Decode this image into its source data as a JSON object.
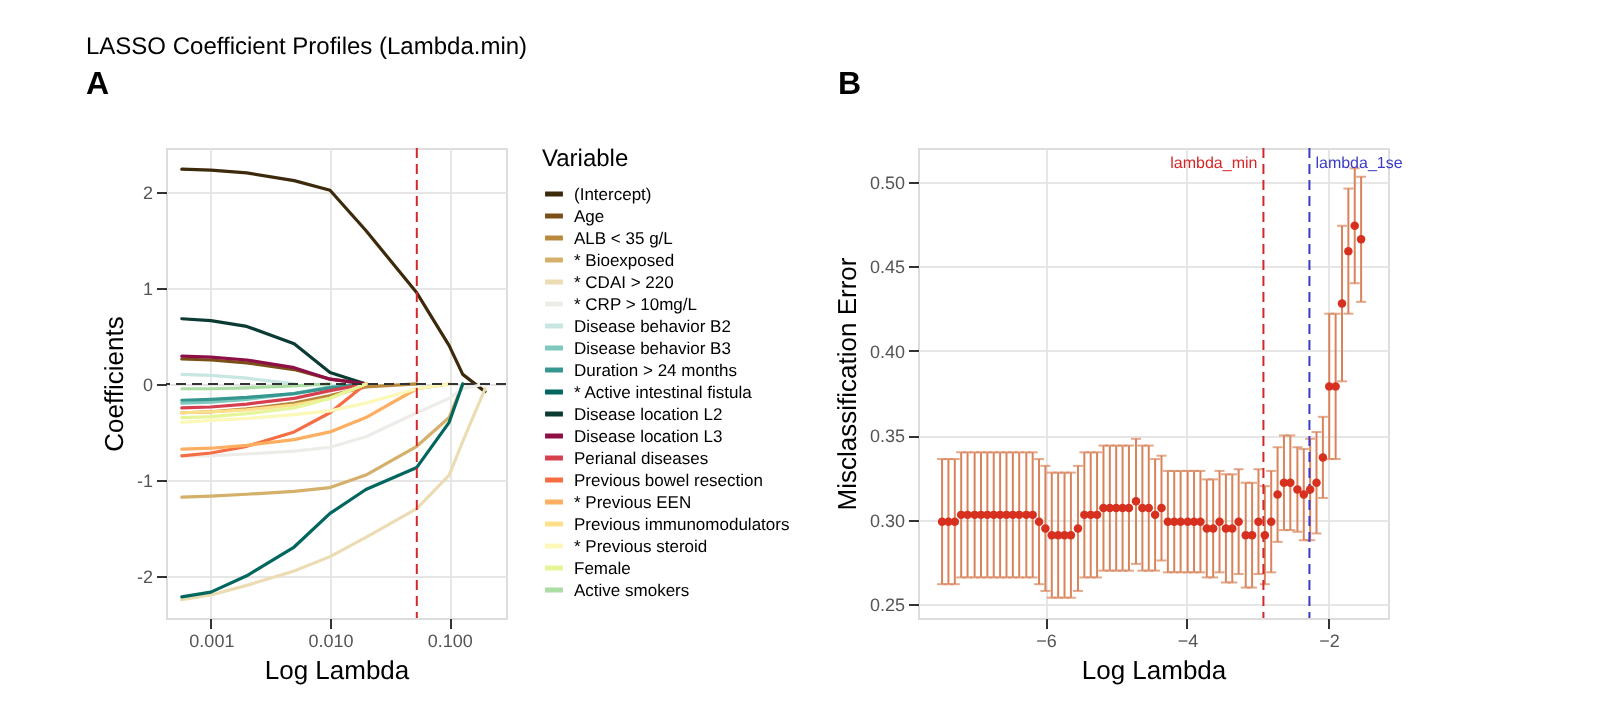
{
  "chart_data": [
    {
      "type": "line",
      "title": "LASSO Coefficient Profiles (Lambda.min)",
      "xlabel": "Log Lambda",
      "ylabel": "Coefficients",
      "legend_title": "Variable",
      "annotations": [
        "A"
      ],
      "x": [
        0.00057,
        0.001,
        0.002,
        0.005,
        0.01,
        0.02,
        0.0535,
        0.1,
        0.13,
        0.2
      ],
      "series": [
        {
          "name": "(Intercept)",
          "color": "#3d2a0c",
          "values": [
            2.24,
            2.23,
            2.2,
            2.12,
            2.02,
            1.6,
            0.95,
            0.4,
            0.1,
            -0.08
          ]
        },
        {
          "name": "Age",
          "color": "#7a5018",
          "values": [
            0.26,
            0.25,
            0.22,
            0.15,
            0.05,
            0,
            null,
            null,
            null,
            null
          ]
        },
        {
          "name": "ALB < 35 g/L",
          "color": "#b8893c",
          "values": [
            -0.3,
            -0.29,
            -0.26,
            -0.2,
            -0.12,
            -0.03,
            0,
            null,
            null,
            null
          ]
        },
        {
          "name": "* Bioexposed",
          "color": "#d4b06a",
          "values": [
            -1.18,
            -1.17,
            -1.15,
            -1.12,
            -1.08,
            -0.95,
            -0.65,
            -0.35,
            0,
            null
          ]
        },
        {
          "name": "* CDAI > 220",
          "color": "#ecdcb4",
          "values": [
            -2.25,
            -2.2,
            -2.1,
            -1.95,
            -1.8,
            -1.6,
            -1.3,
            -0.95,
            -0.6,
            -0.05
          ]
        },
        {
          "name": "* CRP > 10mg/L",
          "color": "#eeece8",
          "values": [
            -0.75,
            -0.75,
            -0.73,
            -0.7,
            -0.66,
            -0.55,
            -0.3,
            -0.15,
            -0.05,
            0
          ]
        },
        {
          "name": "Disease behavior B2",
          "color": "#c8e6e2",
          "values": [
            0.1,
            0.09,
            0.06,
            0,
            null,
            null,
            null,
            null,
            null,
            null
          ]
        },
        {
          "name": "Disease behavior B3",
          "color": "#7fc8bd",
          "values": [
            -0.2,
            -0.19,
            -0.16,
            -0.1,
            -0.03,
            0,
            null,
            null,
            null,
            null
          ]
        },
        {
          "name": "Duration > 24 months",
          "color": "#35978f",
          "values": [
            -0.17,
            -0.16,
            -0.14,
            -0.1,
            -0.04,
            0,
            null,
            null,
            null,
            null
          ]
        },
        {
          "name": "* Active intestinal fistula",
          "color": "#01665e",
          "values": [
            -2.22,
            -2.17,
            -2.0,
            -1.7,
            -1.35,
            -1.1,
            -0.87,
            -0.4,
            0,
            null
          ]
        },
        {
          "name": "Disease location L2",
          "color": "#0b3b33",
          "values": [
            0.68,
            0.66,
            0.6,
            0.42,
            0.12,
            0,
            null,
            null,
            null,
            null
          ]
        },
        {
          "name": "Disease location L3",
          "color": "#8e0f45",
          "values": [
            0.29,
            0.28,
            0.25,
            0.17,
            0.05,
            0,
            null,
            null,
            null,
            null
          ]
        },
        {
          "name": "Perianal diseases",
          "color": "#d6404e",
          "values": [
            -0.25,
            -0.24,
            -0.21,
            -0.15,
            -0.07,
            0,
            null,
            null,
            null,
            null
          ]
        },
        {
          "name": "Previous bowel resection",
          "color": "#f46d43",
          "values": [
            -0.75,
            -0.72,
            -0.65,
            -0.5,
            -0.3,
            0,
            null,
            null,
            null,
            null
          ]
        },
        {
          "name": "* Previous EEN",
          "color": "#fdae61",
          "values": [
            -0.68,
            -0.67,
            -0.64,
            -0.58,
            -0.5,
            -0.35,
            -0.05,
            0,
            null,
            null
          ]
        },
        {
          "name": "Previous immunomodulators",
          "color": "#fee08b",
          "values": [
            -0.3,
            -0.29,
            -0.27,
            -0.22,
            -0.15,
            0,
            null,
            null,
            null,
            null
          ]
        },
        {
          "name": "* Previous steroid",
          "color": "#fbf8b8",
          "values": [
            -0.4,
            -0.38,
            -0.36,
            -0.32,
            -0.28,
            -0.2,
            -0.05,
            0,
            null,
            null
          ]
        },
        {
          "name": "Female",
          "color": "#e6f598",
          "values": [
            -0.35,
            -0.34,
            -0.31,
            -0.25,
            -0.15,
            0,
            null,
            null,
            null,
            null
          ]
        },
        {
          "name": "Active smokers",
          "color": "#abdda4",
          "values": [
            -0.05,
            -0.05,
            -0.04,
            -0.02,
            0,
            null,
            null,
            null,
            null,
            null
          ]
        }
      ],
      "log": "x",
      "xlim": [
        0.00042,
        0.3
      ],
      "xticks": [
        {
          "value": 0.001,
          "label": "0.001"
        },
        {
          "value": 0.01,
          "label": "0.010"
        },
        {
          "value": 0.1,
          "label": "0.100"
        }
      ],
      "ylim": [
        -2.44,
        2.46
      ],
      "yticks": [
        {
          "value": -2,
          "label": "-2"
        },
        {
          "value": -1,
          "label": "-1"
        },
        {
          "value": 0,
          "label": "0"
        },
        {
          "value": 1,
          "label": "1"
        },
        {
          "value": 2,
          "label": "2"
        }
      ],
      "grid": true,
      "legend": "right",
      "line_style": "solid",
      "ref_lines": [
        {
          "axis": "x",
          "value": 0.0535,
          "color": "#d62728",
          "line_style": "dashed"
        },
        {
          "axis": "y",
          "value": 0,
          "color": "#333333",
          "line_style": "dashed"
        }
      ]
    },
    {
      "type": "scatter",
      "xlabel": "Log Lambda",
      "ylabel": "Misclassification Error",
      "annotations": [
        "B"
      ],
      "marker": "circle",
      "grid": true,
      "x": [
        -7.46,
        -7.37,
        -7.28,
        -7.19,
        -7.1,
        -7.0,
        -6.91,
        -6.82,
        -6.73,
        -6.64,
        -6.55,
        -6.46,
        -6.37,
        -6.27,
        -6.18,
        -6.09,
        -6.0,
        -5.91,
        -5.82,
        -5.73,
        -5.64,
        -5.54,
        -5.45,
        -5.36,
        -5.27,
        -5.18,
        -5.09,
        -5.0,
        -4.91,
        -4.82,
        -4.72,
        -4.63,
        -4.54,
        -4.45,
        -4.36,
        -4.27,
        -4.18,
        -4.09,
        -3.99,
        -3.9,
        -3.81,
        -3.72,
        -3.63,
        -3.54,
        -3.45,
        -3.36,
        -3.27,
        -3.17,
        -3.08,
        -2.99,
        -2.9,
        -2.81,
        -2.72,
        -2.63,
        -2.54,
        -2.44,
        -2.35,
        -2.26,
        -2.17,
        -2.08,
        -1.99,
        -1.9,
        -1.81,
        -1.72,
        -1.63,
        -1.54
      ],
      "series": [
        {
          "color": "#d7301f",
          "values": [
            0.299,
            0.299,
            0.299,
            0.303,
            0.303,
            0.303,
            0.303,
            0.303,
            0.303,
            0.303,
            0.303,
            0.303,
            0.303,
            0.303,
            0.303,
            0.299,
            0.295,
            0.291,
            0.291,
            0.291,
            0.291,
            0.295,
            0.303,
            0.303,
            0.303,
            0.307,
            0.307,
            0.307,
            0.307,
            0.307,
            0.311,
            0.307,
            0.307,
            0.303,
            0.307,
            0.299,
            0.299,
            0.299,
            0.299,
            0.299,
            0.299,
            0.295,
            0.295,
            0.299,
            0.295,
            0.295,
            0.299,
            0.291,
            0.291,
            0.299,
            0.291,
            0.299,
            0.315,
            0.322,
            0.322,
            0.318,
            0.315,
            0.318,
            0.322,
            0.337,
            0.379,
            0.379,
            0.428,
            0.459,
            0.474,
            0.466
          ],
          "errors": [
            0.037,
            0.037,
            0.037,
            0.037,
            0.037,
            0.037,
            0.037,
            0.037,
            0.037,
            0.037,
            0.037,
            0.037,
            0.037,
            0.037,
            0.037,
            0.037,
            0.037,
            0.037,
            0.037,
            0.037,
            0.037,
            0.037,
            0.037,
            0.037,
            0.037,
            0.037,
            0.037,
            0.037,
            0.037,
            0.037,
            0.037,
            0.037,
            0.037,
            0.033,
            0.031,
            0.03,
            0.03,
            0.03,
            0.03,
            0.03,
            0.03,
            0.029,
            0.029,
            0.03,
            0.032,
            0.032,
            0.031,
            0.031,
            0.031,
            0.031,
            0.029,
            0.03,
            0.028,
            0.028,
            0.028,
            0.025,
            0.027,
            0.03,
            0.03,
            0.024,
            0.043,
            0.043,
            0.046,
            0.037,
            0.034,
            0.037
          ]
        }
      ],
      "xlim": [
        -7.8,
        -1.16
      ],
      "xticks": [
        -6,
        -4,
        -2
      ],
      "ylim": [
        0.242,
        0.52
      ],
      "yticks": [
        0.25,
        {
          "value": 0.3,
          "label": "0.30"
        },
        0.35,
        {
          "value": 0.4,
          "label": "0.40"
        },
        0.45,
        {
          "value": 0.5,
          "label": "0.50"
        }
      ],
      "ref_lines": [
        {
          "axis": "x",
          "value": -2.92,
          "label": "lambda_min",
          "color": "#d62728",
          "line_style": "dashed"
        },
        {
          "axis": "x",
          "value": -2.27,
          "label": "lambda_1se",
          "color": "#3b3bc8",
          "line_style": "dashed"
        }
      ]
    }
  ]
}
